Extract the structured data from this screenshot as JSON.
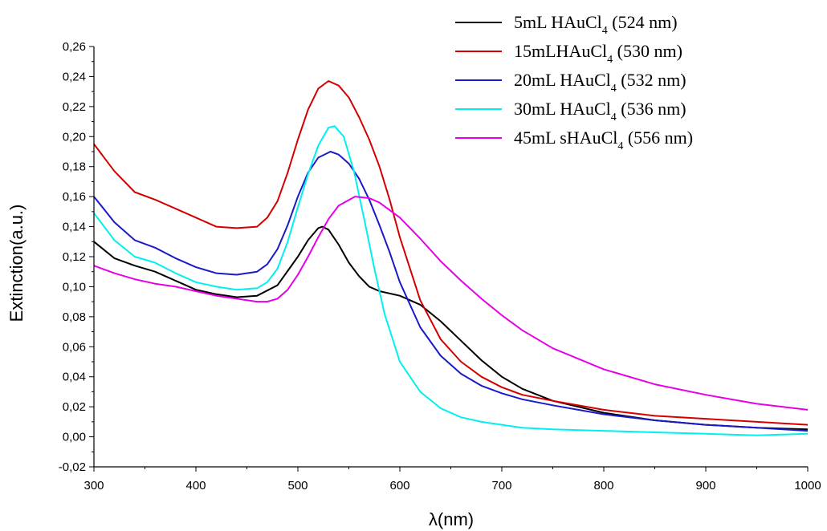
{
  "chart_data": {
    "type": "line",
    "xlabel": "λ(nm)",
    "ylabel": "Extinction(a.u.)",
    "xlim": [
      300,
      1000
    ],
    "ylim": [
      -0.02,
      0.26
    ],
    "x_ticks": [
      300,
      400,
      500,
      600,
      700,
      800,
      900,
      1000
    ],
    "x_tick_labels": [
      "300",
      "400",
      "500",
      "600",
      "700",
      "800",
      "900",
      "1000"
    ],
    "y_ticks": [
      -0.02,
      0.0,
      0.02,
      0.04,
      0.06,
      0.08,
      0.1,
      0.12,
      0.14,
      0.16,
      0.18,
      0.2,
      0.22,
      0.24,
      0.26
    ],
    "y_tick_labels": [
      "-0,02",
      "0,00",
      "0,02",
      "0,04",
      "0,06",
      "0,08",
      "0,10",
      "0,12",
      "0,14",
      "0,16",
      "0,18",
      "0,20",
      "0,22",
      "0,24",
      "0,26"
    ],
    "grid": false,
    "legend_position": "top-right",
    "series": [
      {
        "name": "5mL HAuCl4 (524 nm)",
        "legend_main": "5mL HAuCl",
        "legend_sub": "4",
        "legend_tail": " (524 nm)",
        "color": "#000000",
        "x": [
          300,
          320,
          340,
          360,
          380,
          400,
          420,
          440,
          460,
          480,
          500,
          510,
          520,
          524,
          530,
          540,
          550,
          560,
          570,
          580,
          600,
          620,
          640,
          660,
          680,
          700,
          720,
          750,
          800,
          850,
          900,
          950,
          1000
        ],
        "y": [
          0.13,
          0.119,
          0.114,
          0.11,
          0.104,
          0.098,
          0.095,
          0.093,
          0.094,
          0.101,
          0.12,
          0.131,
          0.139,
          0.14,
          0.138,
          0.128,
          0.116,
          0.107,
          0.1,
          0.097,
          0.094,
          0.088,
          0.077,
          0.064,
          0.051,
          0.04,
          0.032,
          0.024,
          0.016,
          0.011,
          0.008,
          0.006,
          0.005
        ]
      },
      {
        "name": "15mLHAuCl4  (530 nm)",
        "legend_main": "15mLHAuCl",
        "legend_sub": "4",
        "legend_tail": "  (530 nm)",
        "color": "#d40000",
        "x": [
          300,
          320,
          340,
          360,
          380,
          400,
          420,
          440,
          460,
          470,
          480,
          490,
          500,
          510,
          520,
          530,
          540,
          550,
          560,
          570,
          580,
          590,
          600,
          620,
          640,
          660,
          680,
          700,
          720,
          750,
          800,
          850,
          900,
          950,
          1000
        ],
        "y": [
          0.195,
          0.177,
          0.163,
          0.158,
          0.152,
          0.146,
          0.14,
          0.139,
          0.14,
          0.146,
          0.157,
          0.176,
          0.198,
          0.218,
          0.232,
          0.237,
          0.234,
          0.226,
          0.213,
          0.198,
          0.18,
          0.158,
          0.133,
          0.091,
          0.065,
          0.05,
          0.04,
          0.033,
          0.028,
          0.024,
          0.018,
          0.014,
          0.012,
          0.01,
          0.008
        ]
      },
      {
        "name": "20mL HAuCl4 (532 nm)",
        "legend_main": "20mL HAuCl",
        "legend_sub": "4",
        "legend_tail": " (532 nm)",
        "color": "#1a1ac8",
        "x": [
          300,
          320,
          340,
          360,
          380,
          400,
          420,
          440,
          460,
          470,
          480,
          490,
          500,
          510,
          520,
          532,
          540,
          550,
          560,
          570,
          580,
          590,
          600,
          620,
          640,
          660,
          680,
          700,
          720,
          750,
          800,
          850,
          900,
          950,
          1000
        ],
        "y": [
          0.16,
          0.143,
          0.131,
          0.126,
          0.119,
          0.113,
          0.109,
          0.108,
          0.11,
          0.115,
          0.125,
          0.141,
          0.16,
          0.176,
          0.186,
          0.19,
          0.188,
          0.182,
          0.172,
          0.158,
          0.141,
          0.123,
          0.103,
          0.073,
          0.054,
          0.042,
          0.034,
          0.029,
          0.025,
          0.021,
          0.015,
          0.011,
          0.008,
          0.006,
          0.004
        ]
      },
      {
        "name": "30mL HAuCl4 (536 nm)",
        "legend_main": "30mL HAuCl",
        "legend_sub": "4",
        "legend_tail": " (536 nm)",
        "color": "#00f0f0",
        "x": [
          300,
          320,
          340,
          360,
          380,
          400,
          420,
          440,
          460,
          470,
          480,
          490,
          500,
          510,
          520,
          530,
          536,
          545,
          555,
          565,
          575,
          585,
          600,
          620,
          640,
          660,
          680,
          700,
          720,
          750,
          800,
          850,
          900,
          950,
          1000
        ],
        "y": [
          0.149,
          0.131,
          0.12,
          0.116,
          0.109,
          0.103,
          0.1,
          0.098,
          0.099,
          0.103,
          0.112,
          0.13,
          0.153,
          0.175,
          0.194,
          0.206,
          0.207,
          0.2,
          0.177,
          0.145,
          0.112,
          0.082,
          0.05,
          0.03,
          0.019,
          0.013,
          0.01,
          0.008,
          0.006,
          0.005,
          0.004,
          0.003,
          0.002,
          0.001,
          0.002
        ]
      },
      {
        "name": "45mL sHAuCl4 (556 nm)",
        "legend_main": "45mL sHAuCl",
        "legend_sub": "4",
        "legend_tail": " (556 nm)",
        "color": "#e600e6",
        "x": [
          300,
          320,
          340,
          360,
          380,
          400,
          420,
          440,
          460,
          470,
          480,
          490,
          500,
          510,
          520,
          530,
          540,
          556,
          570,
          580,
          600,
          620,
          640,
          660,
          680,
          700,
          720,
          750,
          800,
          850,
          900,
          950,
          1000
        ],
        "y": [
          0.114,
          0.109,
          0.105,
          0.102,
          0.1,
          0.097,
          0.094,
          0.092,
          0.09,
          0.09,
          0.092,
          0.098,
          0.108,
          0.12,
          0.133,
          0.145,
          0.154,
          0.16,
          0.159,
          0.156,
          0.146,
          0.132,
          0.117,
          0.104,
          0.092,
          0.081,
          0.071,
          0.059,
          0.045,
          0.035,
          0.028,
          0.022,
          0.018
        ]
      }
    ]
  }
}
